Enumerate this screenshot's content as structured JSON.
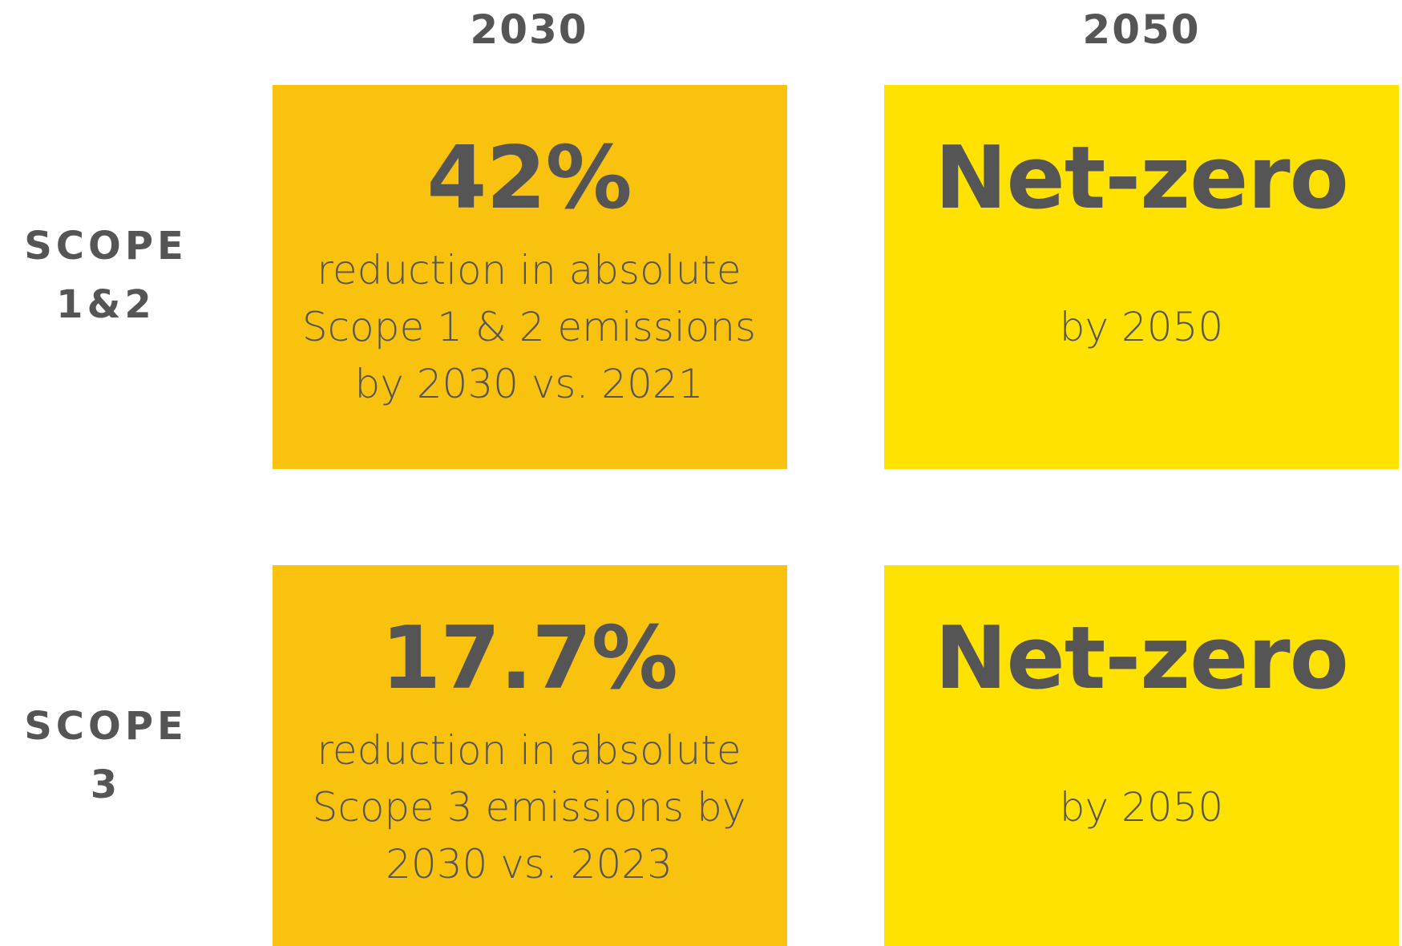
{
  "columns": [
    "2030",
    "2050"
  ],
  "rows": [
    {
      "label": [
        "SCOPE",
        "1&2"
      ],
      "cells": [
        {
          "headline": "42%",
          "lines": [
            "reduction in absolute",
            "Scope 1 & 2 emissions",
            "by 2030 vs. 2021"
          ]
        },
        {
          "headline": "Net-zero",
          "lines": [
            "by 2050"
          ]
        }
      ]
    },
    {
      "label": [
        "SCOPE",
        "3"
      ],
      "cells": [
        {
          "headline": "17.7%",
          "lines": [
            "reduction in absolute",
            "Scope 3 emissions by",
            "2030 vs. 2023"
          ]
        },
        {
          "headline": "Net-zero",
          "lines": [
            "by 2050"
          ]
        }
      ]
    }
  ]
}
